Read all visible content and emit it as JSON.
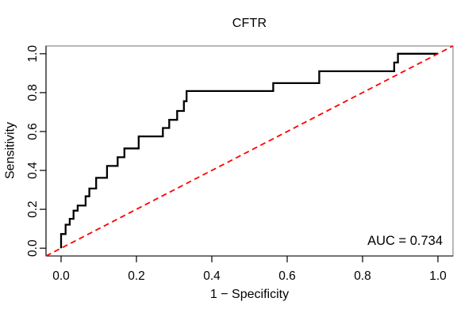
{
  "chart_data": {
    "type": "line",
    "subtype": "roc-curve",
    "title": "CFTR",
    "xlabel": "1 − Specificity",
    "ylabel": "Sensitivity",
    "xlim": [
      -0.04,
      1.04
    ],
    "ylim": [
      -0.04,
      1.04
    ],
    "grid": false,
    "legend": "none",
    "x_ticks": [
      0,
      0.2,
      0.4,
      0.6,
      0.8,
      1.0
    ],
    "x_tick_labels": [
      "0.0",
      "0.2",
      "0.4",
      "0.6",
      "0.8",
      "1.0"
    ],
    "y_ticks": [
      0,
      0.2,
      0.4,
      0.6,
      0.8,
      1.0
    ],
    "y_tick_labels": [
      "0.0",
      "0.2",
      "0.4",
      "0.6",
      "0.8",
      "1.0"
    ],
    "auc": 0.734,
    "annotations": [
      {
        "text": "AUC = 0.734",
        "anchor": "bottom-right"
      }
    ],
    "colors": {
      "curve": "#000000",
      "chance_line": "#ff0000",
      "box": "#8a8a8a",
      "axis": "#000000",
      "text": "#000000"
    },
    "series": [
      {
        "name": "ROC curve",
        "color": "#000000",
        "style": "solid",
        "line_width": 2.3,
        "step": true,
        "points": [
          [
            0.0,
            0.0
          ],
          [
            0.0,
            0.073
          ],
          [
            0.012,
            0.073
          ],
          [
            0.012,
            0.121
          ],
          [
            0.023,
            0.121
          ],
          [
            0.023,
            0.151
          ],
          [
            0.033,
            0.151
          ],
          [
            0.033,
            0.193
          ],
          [
            0.044,
            0.193
          ],
          [
            0.044,
            0.219
          ],
          [
            0.065,
            0.219
          ],
          [
            0.065,
            0.267
          ],
          [
            0.075,
            0.267
          ],
          [
            0.075,
            0.307
          ],
          [
            0.093,
            0.307
          ],
          [
            0.093,
            0.362
          ],
          [
            0.122,
            0.362
          ],
          [
            0.122,
            0.423
          ],
          [
            0.15,
            0.423
          ],
          [
            0.15,
            0.468
          ],
          [
            0.168,
            0.468
          ],
          [
            0.168,
            0.513
          ],
          [
            0.206,
            0.513
          ],
          [
            0.206,
            0.575
          ],
          [
            0.27,
            0.575
          ],
          [
            0.27,
            0.618
          ],
          [
            0.287,
            0.618
          ],
          [
            0.287,
            0.66
          ],
          [
            0.308,
            0.66
          ],
          [
            0.308,
            0.706
          ],
          [
            0.326,
            0.706
          ],
          [
            0.326,
            0.756
          ],
          [
            0.333,
            0.756
          ],
          [
            0.333,
            0.808
          ],
          [
            0.563,
            0.808
          ],
          [
            0.563,
            0.849
          ],
          [
            0.685,
            0.849
          ],
          [
            0.685,
            0.91
          ],
          [
            0.884,
            0.91
          ],
          [
            0.884,
            0.955
          ],
          [
            0.894,
            0.955
          ],
          [
            0.894,
            1.0
          ],
          [
            1.0,
            1.0
          ]
        ]
      },
      {
        "name": "Chance diagonal",
        "color": "#ff0000",
        "style": "dashed",
        "line_width": 1.8,
        "extend_to_limits": true,
        "points": [
          [
            0,
            0
          ],
          [
            1,
            1
          ]
        ]
      }
    ]
  }
}
